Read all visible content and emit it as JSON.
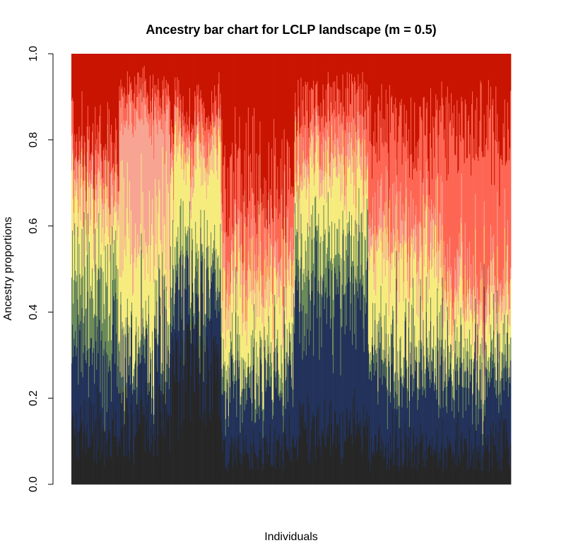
{
  "chart_data": {
    "type": "bar",
    "stacked": true,
    "title": "Ancestry bar chart for LCLP landscape (m = 0.5)",
    "xlabel": "Individuals",
    "ylabel": "Ancestry proportions",
    "ylim": [
      0,
      1
    ],
    "yticks": [
      "0.0",
      "0.2",
      "0.4",
      "0.6",
      "0.8",
      "1.0"
    ],
    "ytick_values": [
      0,
      0.2,
      0.4,
      0.6,
      0.8,
      1.0
    ],
    "n_individuals": 600,
    "cluster_colors": [
      "#262626",
      "#22325a",
      "#6b8b5a",
      "#f6ec7e",
      "#f7a493",
      "#fe6654",
      "#c81400"
    ],
    "populations": [
      {
        "count": 65,
        "mean_proportions": [
          0.13,
          0.19,
          0.18,
          0.16,
          0.07,
          0.07,
          0.2
        ]
      },
      {
        "count": 70,
        "mean_proportions": [
          0.15,
          0.15,
          0.04,
          0.24,
          0.27,
          0.06,
          0.09
        ]
      },
      {
        "count": 70,
        "mean_proportions": [
          0.27,
          0.17,
          0.08,
          0.25,
          0.04,
          0.07,
          0.12
        ]
      },
      {
        "count": 100,
        "mean_proportions": [
          0.08,
          0.15,
          0.05,
          0.17,
          0.07,
          0.18,
          0.3
        ]
      },
      {
        "count": 100,
        "mean_proportions": [
          0.12,
          0.3,
          0.12,
          0.18,
          0.06,
          0.1,
          0.12
        ]
      },
      {
        "count": 100,
        "mean_proportions": [
          0.08,
          0.18,
          0.05,
          0.22,
          0.08,
          0.2,
          0.19
        ]
      },
      {
        "count": 95,
        "mean_proportions": [
          0.08,
          0.16,
          0.05,
          0.12,
          0.06,
          0.35,
          0.18
        ]
      }
    ]
  }
}
